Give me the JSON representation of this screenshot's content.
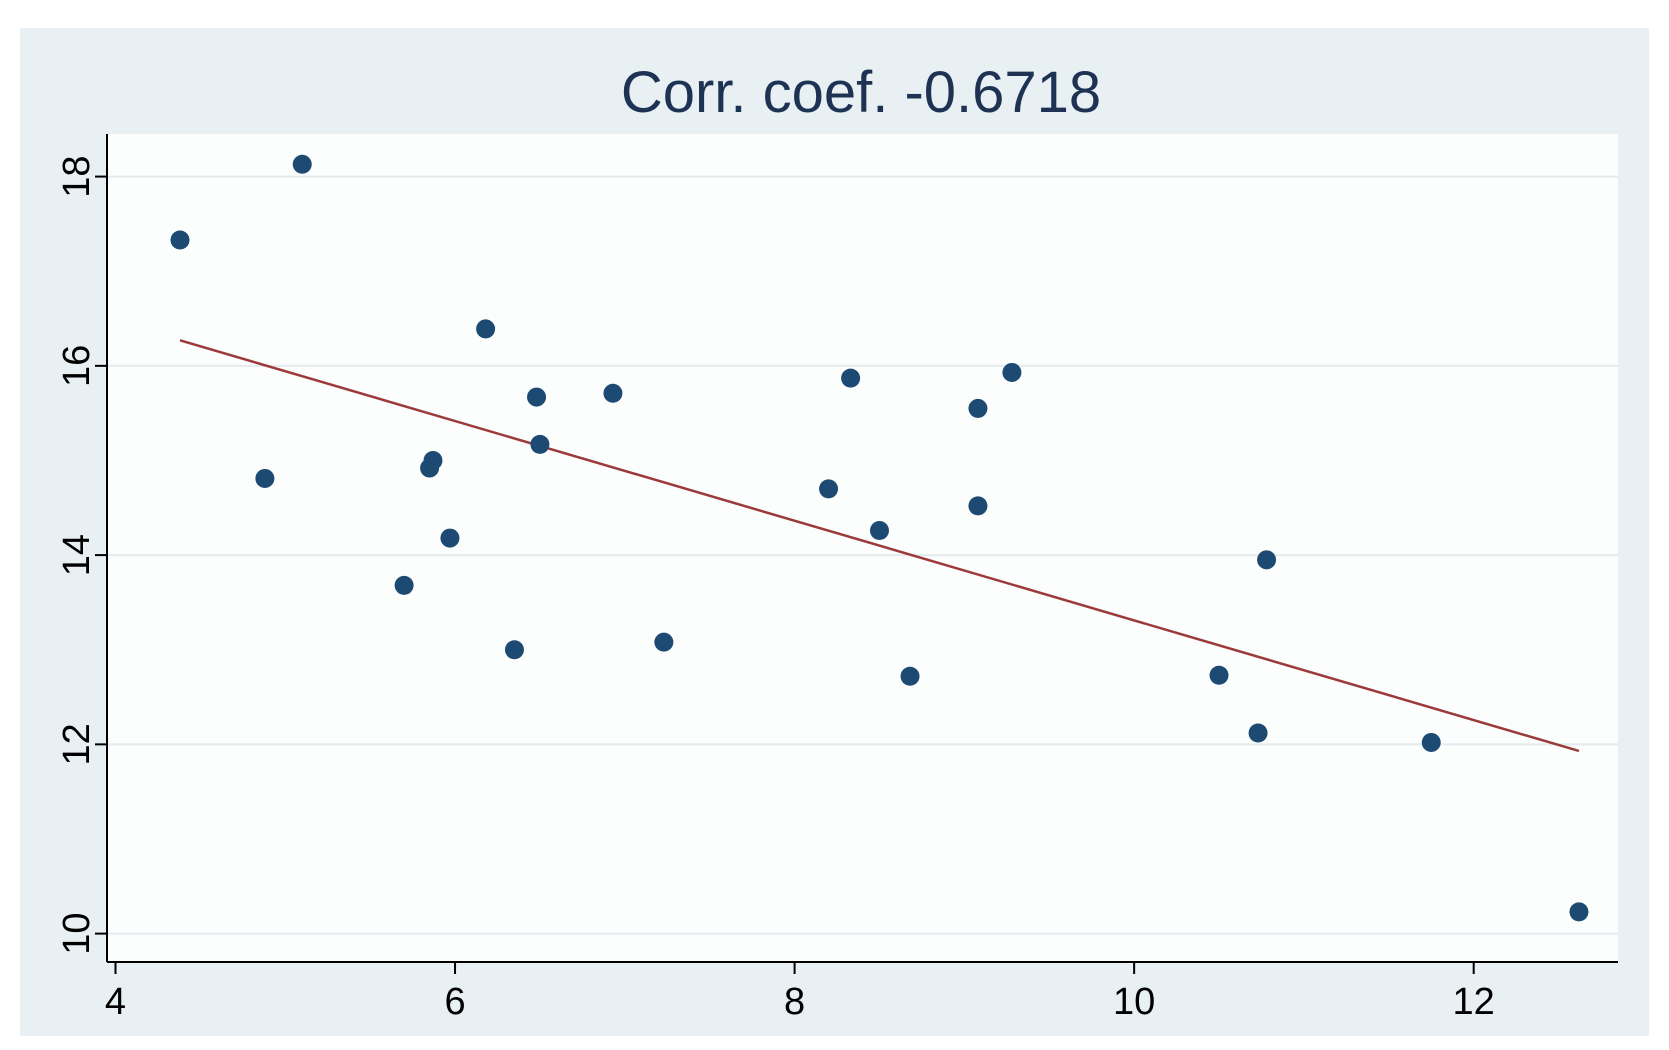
{
  "chart_data": {
    "type": "scatter",
    "title": "Corr. coef. -0.6718",
    "xlabel": "",
    "ylabel": "",
    "xlim": [
      3.95,
      12.85
    ],
    "ylim": [
      9.7,
      18.45
    ],
    "xticks": [
      "4",
      "6",
      "8",
      "10",
      "12"
    ],
    "xtick_values": [
      4,
      6,
      8,
      10,
      12
    ],
    "yticks": [
      "10",
      "12",
      "14",
      "16",
      "18"
    ],
    "ytick_values": [
      10,
      12,
      14,
      16,
      18
    ],
    "grid": true,
    "legend": "none",
    "colors": {
      "outer_background": "#e8f0f3",
      "plot_background": "#fcfdfd",
      "gridline": "#e3ebee",
      "points": "#1c4a72",
      "fit_line": "#9c3a3a",
      "title_text": "#1e3354",
      "axis": "#000000"
    },
    "series": [
      {
        "points": [
          {
            "x": 4.38,
            "y": 17.33
          },
          {
            "x": 5.1,
            "y": 18.13
          },
          {
            "x": 4.88,
            "y": 14.81
          },
          {
            "x": 5.7,
            "y": 13.68
          },
          {
            "x": 5.85,
            "y": 14.92
          },
          {
            "x": 5.87,
            "y": 15.0
          },
          {
            "x": 5.97,
            "y": 14.18
          },
          {
            "x": 6.18,
            "y": 16.39
          },
          {
            "x": 6.35,
            "y": 13.0
          },
          {
            "x": 6.48,
            "y": 15.67
          },
          {
            "x": 6.5,
            "y": 15.17
          },
          {
            "x": 6.93,
            "y": 15.71
          },
          {
            "x": 7.23,
            "y": 13.08
          },
          {
            "x": 8.2,
            "y": 14.7
          },
          {
            "x": 8.33,
            "y": 15.87
          },
          {
            "x": 8.5,
            "y": 14.26
          },
          {
            "x": 8.68,
            "y": 12.72
          },
          {
            "x": 9.08,
            "y": 15.55
          },
          {
            "x": 9.08,
            "y": 14.52
          },
          {
            "x": 9.28,
            "y": 15.93
          },
          {
            "x": 10.5,
            "y": 12.73
          },
          {
            "x": 10.73,
            "y": 12.12
          },
          {
            "x": 10.78,
            "y": 13.95
          },
          {
            "x": 11.75,
            "y": 12.02
          },
          {
            "x": 12.62,
            "y": 10.23
          }
        ]
      }
    ],
    "fit_line": {
      "x": [
        4.38,
        12.62
      ],
      "y": [
        16.27,
        11.93
      ]
    }
  }
}
